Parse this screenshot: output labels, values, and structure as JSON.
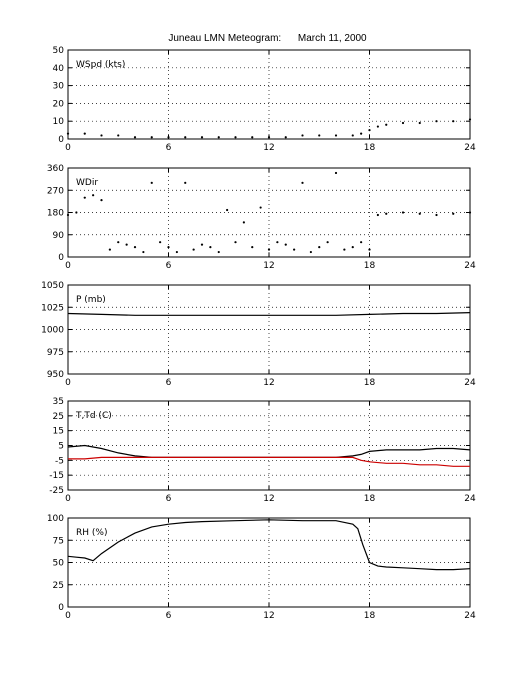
{
  "title": "Juneau LMN Meteogram:      March 11, 2000",
  "chart_data": [
    {
      "type": "scatter",
      "label": "WSpd (kts)",
      "xlim": [
        0,
        24
      ],
      "ylim": [
        0,
        50
      ],
      "xticks": [
        0,
        6,
        12,
        18,
        24
      ],
      "yticks": [
        0,
        10,
        20,
        30,
        40,
        50
      ],
      "grid": true,
      "series": [
        {
          "color": "#000000",
          "x": [
            0,
            1,
            2,
            3,
            4,
            5,
            6,
            7,
            8,
            9,
            10,
            11,
            12,
            13,
            14,
            15,
            16,
            17,
            17.5,
            18,
            18.5,
            19,
            20,
            21,
            22,
            23,
            24
          ],
          "y": [
            3,
            3,
            2,
            2,
            1,
            1,
            1,
            1,
            1,
            1,
            1,
            1,
            1,
            1,
            2,
            2,
            2,
            2,
            3,
            5,
            7,
            8,
            9,
            9,
            10,
            10,
            11
          ]
        }
      ]
    },
    {
      "type": "scatter",
      "label": "WDir",
      "xlim": [
        0,
        24
      ],
      "ylim": [
        0,
        360
      ],
      "xticks": [
        0,
        6,
        12,
        18,
        24
      ],
      "yticks": [
        0,
        90,
        180,
        270,
        360
      ],
      "grid": true,
      "series": [
        {
          "color": "#000000",
          "x": [
            0,
            0.5,
            1,
            1.5,
            2,
            2.5,
            3,
            3.5,
            4,
            4.5,
            5,
            5.5,
            6,
            6.5,
            7,
            7.5,
            8,
            8.5,
            9,
            9.5,
            10,
            10.5,
            11,
            11.5,
            12,
            12.5,
            13,
            13.5,
            14,
            14.5,
            15,
            15.5,
            16,
            16.5,
            17,
            17.5,
            18,
            18.5,
            19,
            20,
            21,
            22,
            23,
            24
          ],
          "y": [
            170,
            180,
            240,
            250,
            230,
            30,
            60,
            50,
            40,
            20,
            300,
            60,
            40,
            20,
            300,
            30,
            50,
            40,
            20,
            190,
            60,
            140,
            40,
            200,
            30,
            60,
            50,
            30,
            300,
            20,
            40,
            60,
            340,
            30,
            40,
            60,
            30,
            170,
            175,
            180,
            175,
            170,
            175,
            180
          ]
        }
      ]
    },
    {
      "type": "line",
      "label": "P (mb)",
      "xlim": [
        0,
        24
      ],
      "ylim": [
        950,
        1050
      ],
      "xticks": [
        0,
        6,
        12,
        18,
        24
      ],
      "yticks": [
        950,
        975,
        1000,
        1025,
        1050
      ],
      "grid": true,
      "series": [
        {
          "color": "#000000",
          "x": [
            0,
            2,
            4,
            6,
            8,
            10,
            12,
            14,
            16,
            18,
            20,
            22,
            24
          ],
          "y": [
            1018,
            1017,
            1016,
            1016,
            1016,
            1016,
            1016,
            1016,
            1016,
            1017,
            1018,
            1018,
            1019
          ]
        }
      ]
    },
    {
      "type": "line",
      "label": "T,Td (C)",
      "xlim": [
        0,
        24
      ],
      "ylim": [
        -25,
        35
      ],
      "xticks": [
        0,
        6,
        12,
        18,
        24
      ],
      "yticks": [
        -25,
        -15,
        -5,
        5,
        15,
        25,
        35
      ],
      "grid": true,
      "series": [
        {
          "color": "#000000",
          "x": [
            0,
            1,
            2,
            3,
            4,
            5,
            6,
            8,
            10,
            12,
            14,
            16,
            17,
            17.5,
            18,
            19,
            20,
            21,
            22,
            23,
            24
          ],
          "y": [
            4,
            5,
            3,
            0,
            -2,
            -3,
            -3,
            -3,
            -3,
            -3,
            -3,
            -3,
            -2,
            -1,
            1,
            2,
            2,
            2,
            3,
            3,
            2
          ]
        },
        {
          "color": "#cc0000",
          "x": [
            0,
            1,
            2,
            3,
            4,
            5,
            6,
            8,
            10,
            12,
            14,
            16,
            17,
            17.5,
            18,
            19,
            20,
            21,
            22,
            23,
            24
          ],
          "y": [
            -4,
            -4,
            -3,
            -3,
            -3,
            -3,
            -3,
            -3,
            -3,
            -3,
            -3,
            -3,
            -3,
            -5,
            -6,
            -7,
            -7,
            -8,
            -8,
            -9,
            -9
          ]
        }
      ]
    },
    {
      "type": "line",
      "label": "RH (%)",
      "xlim": [
        0,
        24
      ],
      "ylim": [
        0,
        100
      ],
      "xticks": [
        0,
        6,
        12,
        18,
        24
      ],
      "yticks": [
        0,
        25,
        50,
        75,
        100
      ],
      "grid": true,
      "series": [
        {
          "color": "#000000",
          "x": [
            0,
            0.5,
            1,
            1.5,
            2,
            3,
            4,
            5,
            6,
            7,
            8,
            10,
            12,
            14,
            16,
            17,
            17.3,
            17.6,
            18,
            18.5,
            19,
            20,
            21,
            22,
            23,
            24
          ],
          "y": [
            57,
            56,
            55,
            52,
            60,
            73,
            83,
            90,
            93,
            95,
            96,
            97,
            98,
            97,
            97,
            93,
            88,
            70,
            50,
            46,
            45,
            44,
            43,
            42,
            42,
            43
          ]
        }
      ]
    }
  ]
}
